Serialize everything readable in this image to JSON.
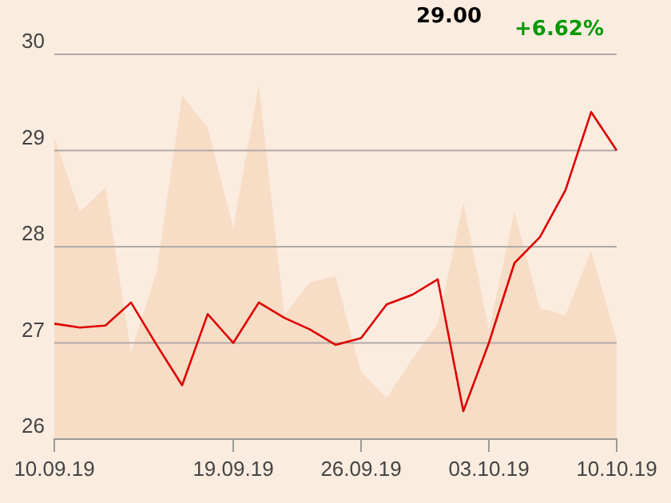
{
  "chart_data": {
    "type": "line",
    "annotations": [
      "29.00",
      "+6.62%"
    ],
    "categories": [
      "10.09.19",
      null,
      null,
      null,
      null,
      null,
      null,
      "19.09.19",
      null,
      null,
      null,
      null,
      "26.09.19",
      null,
      null,
      null,
      null,
      "03.10.19",
      null,
      null,
      null,
      null,
      "10.10.19"
    ],
    "series": [
      {
        "type": "area",
        "color": "#f7dcc6",
        "values": [
          29.14,
          28.36,
          28.62,
          26.9,
          27.74,
          29.57,
          29.24,
          28.19,
          29.68,
          27.29,
          27.63,
          27.69,
          26.7,
          26.43,
          26.83,
          27.2,
          28.46,
          27.13,
          28.36,
          27.36,
          27.29,
          27.96,
          27.03
        ]
      },
      {
        "color": "#dd0000",
        "values": [
          27.2,
          27.16,
          27.18,
          27.42,
          26.98,
          26.56,
          27.3,
          27.0,
          27.42,
          27.26,
          27.14,
          26.98,
          27.05,
          27.4,
          27.5,
          27.66,
          26.29,
          27.0,
          27.83,
          28.1,
          28.59,
          29.4,
          29.0
        ]
      }
    ],
    "ylim": [
      26,
      30
    ],
    "yticks": [
      26,
      27,
      28,
      29,
      30
    ],
    "grid": "y",
    "marker": "none",
    "line_style": "solid"
  }
}
